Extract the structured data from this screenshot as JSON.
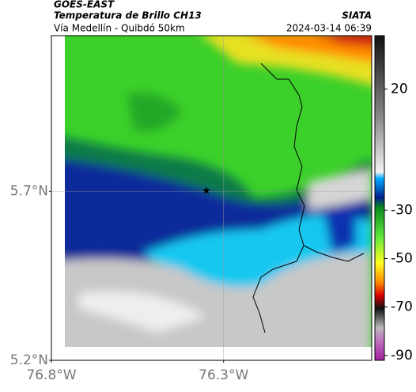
{
  "header": {
    "product": "GOES-EAST",
    "title": "Temperatura de Brillo CH13",
    "source": "SIATA",
    "subtitle": "Vía Medellín - Quibdó 50km",
    "timestamp": "2024-03-14 06:39"
  },
  "map": {
    "xlim": [
      -76.8,
      -75.87
    ],
    "ylim": [
      5.2,
      6.16
    ],
    "xticks": [
      {
        "value": -76.8,
        "label": "76.8°W"
      },
      {
        "value": -76.3,
        "label": "76.3°W"
      }
    ],
    "yticks": [
      {
        "value": 5.2,
        "label": "5.2°N"
      },
      {
        "value": 5.7,
        "label": "5.7°N"
      }
    ],
    "grid": true,
    "marker": {
      "lon": -76.35,
      "lat": 5.7
    }
  },
  "colorbar": {
    "lim": [
      -92,
      42
    ],
    "ticks": [
      20,
      -30,
      -50,
      -70,
      -90
    ]
  }
}
